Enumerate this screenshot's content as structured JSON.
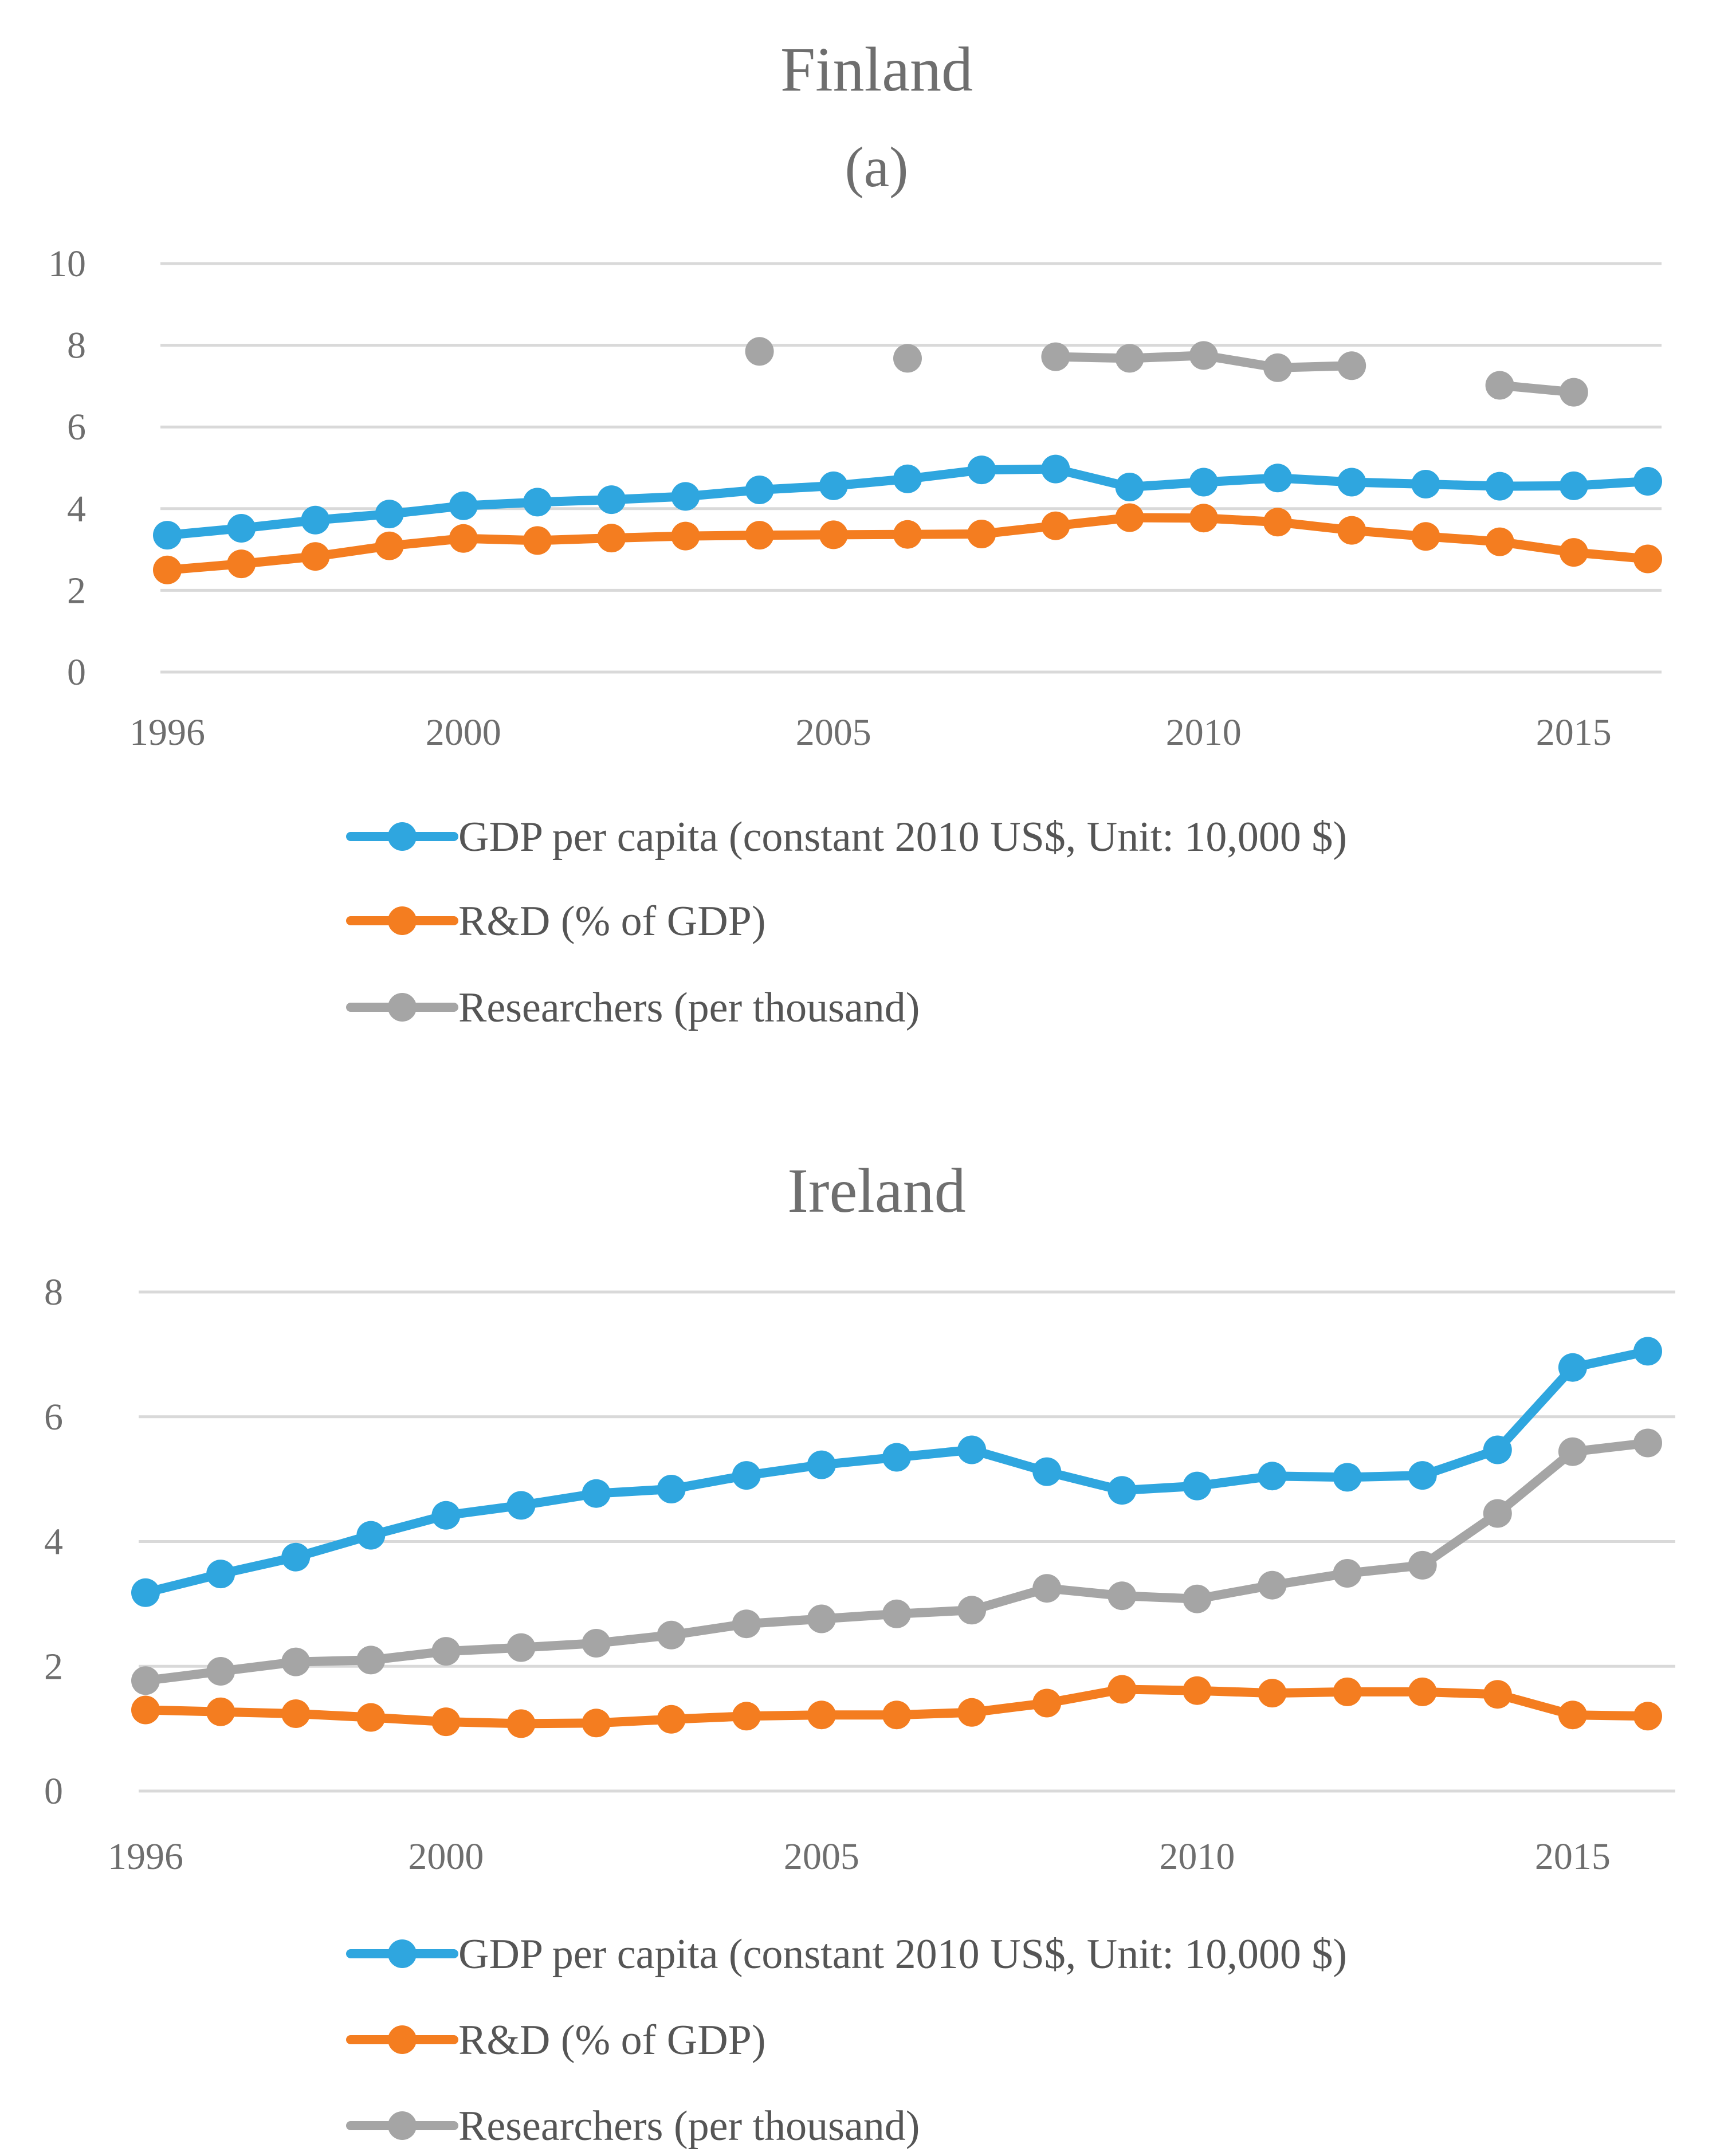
{
  "colors": {
    "gdp": "#2fa6df",
    "rd": "#f47d20",
    "researchers": "#a5a5a5",
    "text": "#6e6e6e",
    "grid": "#d9d9d9"
  },
  "chart_data": [
    {
      "type": "line",
      "title": "Finland",
      "subtitle": "(a)",
      "xlabel": "",
      "ylabel": "",
      "xlim": [
        1996,
        2016
      ],
      "ylim": [
        0,
        10
      ],
      "y_ticks": [
        "0",
        "2",
        "4",
        "6",
        "8",
        "10"
      ],
      "x_ticks": [
        "1996",
        "2000",
        "2005",
        "2010",
        "2015"
      ],
      "grid": true,
      "legend_position": "bottom",
      "x": [
        1996,
        1997,
        1998,
        1999,
        2000,
        2001,
        2002,
        2003,
        2004,
        2005,
        2006,
        2007,
        2008,
        2009,
        2010,
        2011,
        2012,
        2013,
        2014,
        2015,
        2016
      ],
      "series": [
        {
          "name": "GDP per capita (constant 2010 US$, Unit: 10,000 $)",
          "key": "gdp",
          "values": [
            3.35,
            3.52,
            3.72,
            3.87,
            4.07,
            4.16,
            4.22,
            4.3,
            4.46,
            4.56,
            4.73,
            4.95,
            4.97,
            4.53,
            4.65,
            4.75,
            4.65,
            4.6,
            4.55,
            4.56,
            4.67
          ]
        },
        {
          "name": "R&D (% of GDP)",
          "key": "rd",
          "values": [
            2.5,
            2.65,
            2.83,
            3.09,
            3.27,
            3.22,
            3.28,
            3.33,
            3.35,
            3.36,
            3.37,
            3.38,
            3.58,
            3.78,
            3.77,
            3.67,
            3.47,
            3.32,
            3.19,
            2.93,
            2.77
          ]
        },
        {
          "name": "Researchers (per thousand)",
          "key": "researchers",
          "values": [
            null,
            null,
            null,
            null,
            null,
            null,
            null,
            null,
            7.85,
            null,
            7.68,
            null,
            7.72,
            7.68,
            7.75,
            7.45,
            7.5,
            null,
            7.02,
            6.85,
            null
          ]
        }
      ]
    },
    {
      "type": "line",
      "title": "Ireland",
      "xlabel": "",
      "ylabel": "",
      "xlim": [
        1996,
        2016
      ],
      "ylim": [
        0,
        8
      ],
      "y_ticks": [
        "0",
        "2",
        "4",
        "6",
        "8"
      ],
      "x_ticks": [
        "1996",
        "2000",
        "2005",
        "2010",
        "2015"
      ],
      "grid": true,
      "legend_position": "bottom",
      "x": [
        1996,
        1997,
        1998,
        1999,
        2000,
        2001,
        2002,
        2003,
        2004,
        2005,
        2006,
        2007,
        2008,
        2009,
        2010,
        2011,
        2012,
        2013,
        2014,
        2015,
        2016
      ],
      "series": [
        {
          "name": "GDP per capita (constant 2010 US$, Unit: 10,000 $)",
          "key": "gdp",
          "values": [
            3.18,
            3.48,
            3.75,
            4.1,
            4.42,
            4.58,
            4.77,
            4.84,
            5.06,
            5.23,
            5.35,
            5.47,
            5.12,
            4.82,
            4.89,
            5.05,
            5.03,
            5.06,
            5.47,
            6.79,
            7.05
          ]
        },
        {
          "name": "R&D (% of GDP)",
          "key": "rd",
          "values": [
            1.3,
            1.27,
            1.24,
            1.18,
            1.11,
            1.08,
            1.09,
            1.15,
            1.2,
            1.22,
            1.22,
            1.26,
            1.41,
            1.63,
            1.61,
            1.57,
            1.59,
            1.59,
            1.55,
            1.22,
            1.2
          ]
        },
        {
          "name": "Researchers (per thousand)",
          "key": "researchers",
          "values": [
            1.77,
            1.92,
            2.07,
            2.1,
            2.24,
            2.3,
            2.37,
            2.5,
            2.68,
            2.76,
            2.84,
            2.9,
            3.25,
            3.13,
            3.08,
            3.3,
            3.49,
            3.62,
            4.45,
            5.44,
            5.58
          ]
        }
      ]
    }
  ]
}
